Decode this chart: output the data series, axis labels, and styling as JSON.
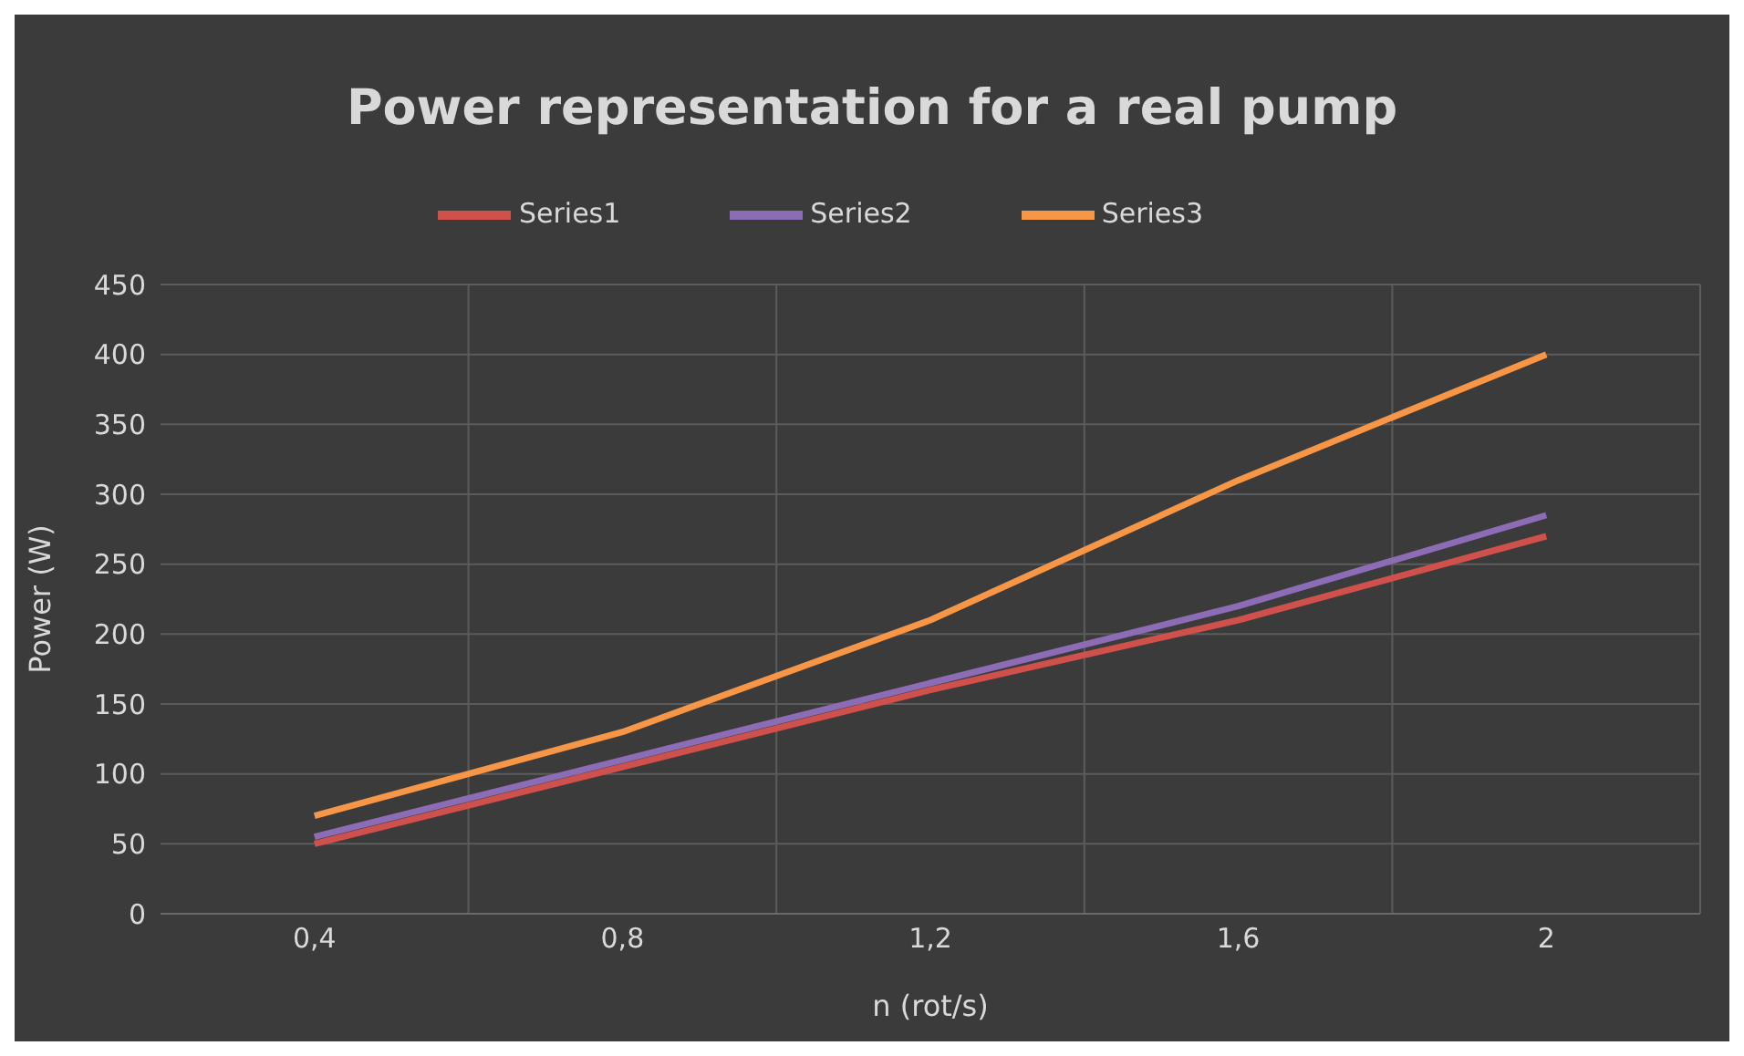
{
  "chart_data": {
    "type": "line",
    "title": "Power representation for a real pump",
    "xlabel": "n (rot/s)",
    "ylabel": "Power (W)",
    "categories": [
      "0,4",
      "0,8",
      "1,2",
      "1,6",
      "2"
    ],
    "series": [
      {
        "name": "Series1",
        "color": "#d0504c",
        "values": [
          50,
          105,
          160,
          210,
          270
        ]
      },
      {
        "name": "Series2",
        "color": "#8d6cb6",
        "values": [
          55,
          110,
          165,
          220,
          285
        ]
      },
      {
        "name": "Series3",
        "color": "#f79646",
        "values": [
          70,
          130,
          210,
          310,
          400
        ]
      }
    ],
    "ylim": [
      0,
      450
    ],
    "yticks": [
      0,
      50,
      100,
      150,
      200,
      250,
      300,
      350,
      400,
      450
    ],
    "grid": true,
    "legend": "top",
    "marker": "none",
    "line_style": "solid"
  }
}
